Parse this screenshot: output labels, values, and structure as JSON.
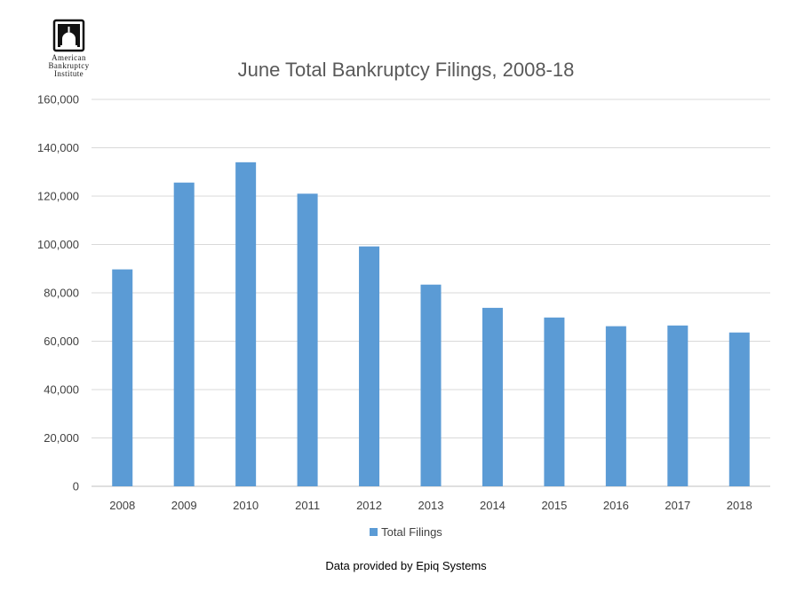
{
  "logo": {
    "lines": [
      "American",
      "Bankruptcy",
      "Institute"
    ]
  },
  "chart_data": {
    "type": "bar",
    "title": "June Total Bankruptcy Filings, 2008-18",
    "categories": [
      "2008",
      "2009",
      "2010",
      "2011",
      "2012",
      "2013",
      "2014",
      "2015",
      "2016",
      "2017",
      "2018"
    ],
    "series": [
      {
        "name": "Total Filings",
        "values": [
          89700,
          125600,
          134000,
          121000,
          99200,
          83400,
          73800,
          69800,
          66200,
          66500,
          63600
        ]
      }
    ],
    "ylim": [
      0,
      160000
    ],
    "yticks": [
      "0",
      "20,000",
      "40,000",
      "60,000",
      "80,000",
      "100,000",
      "120,000",
      "140,000",
      "160,000"
    ],
    "xlabel": "",
    "ylabel": "",
    "grid": true,
    "legend_position": "bottom",
    "bar_color": "#5b9bd5"
  },
  "footnote": "Data provided by Epiq Systems"
}
